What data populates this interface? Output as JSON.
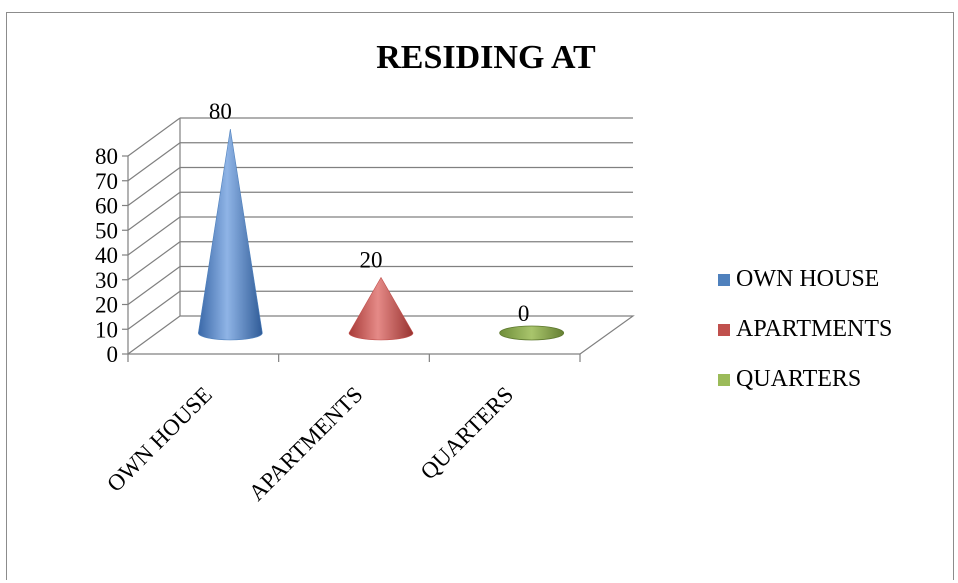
{
  "chart_data": {
    "type": "bar",
    "title": "RESIDING AT",
    "categories": [
      "OWN HOUSE",
      "APARTMENTS",
      "QUARTERS"
    ],
    "values": [
      80,
      20,
      0
    ],
    "data_labels": [
      "80",
      "20",
      "0"
    ],
    "ylim": [
      0,
      80
    ],
    "yticks": [
      "0",
      "10",
      "20",
      "30",
      "40",
      "50",
      "60",
      "70",
      "80"
    ],
    "grid": true,
    "legend_position": "right",
    "legend": [
      "OWN HOUSE",
      "APARTMENTS",
      "QUARTERS"
    ],
    "colors": [
      "#4f81bd",
      "#c0504d",
      "#9bbb59"
    ]
  }
}
